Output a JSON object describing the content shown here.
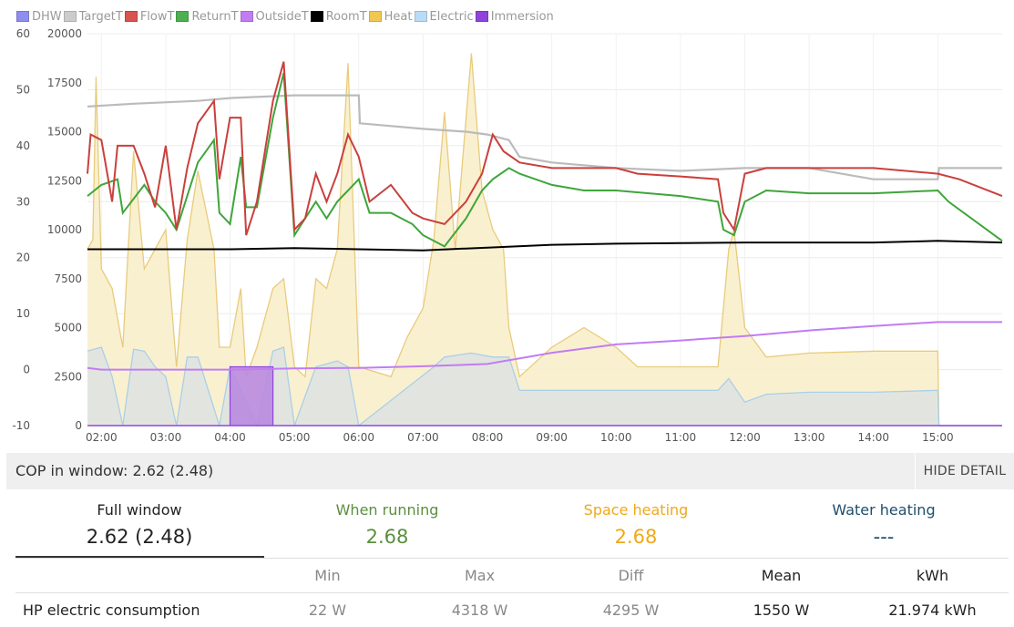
{
  "colors": {
    "dhw": "#8e8ef0",
    "target": "#bbbbbb",
    "flow": "#c9403c",
    "return": "#3fa53a",
    "outside": "#c27cf2",
    "room": "#000000",
    "heat": "#e4c060",
    "heat_fill": "#f8eecb",
    "electric": "#aacfe8",
    "electric_fill": "#dfe3e0",
    "immersion": "#8e44dc",
    "running": "#5a8f3e",
    "space": "#f0a81a",
    "water": "#1f4e6d"
  },
  "legend": [
    {
      "label": "DHW",
      "color": "#8e8ef0"
    },
    {
      "label": "TargetT",
      "color": "#cccccc"
    },
    {
      "label": "FlowT",
      "color": "#d9534f"
    },
    {
      "label": "ReturnT",
      "color": "#4caf50"
    },
    {
      "label": "OutsideT",
      "color": "#c27cf2"
    },
    {
      "label": "RoomT",
      "color": "#000000"
    },
    {
      "label": "Heat",
      "color": "#f0c850"
    },
    {
      "label": "Electric",
      "color": "#b8dcf5"
    },
    {
      "label": "Immersion",
      "color": "#8e44dc"
    }
  ],
  "chart_data": {
    "type": "line",
    "x_label_unit": "time",
    "xlim": [
      "01:47",
      "16:00"
    ],
    "x_ticks": [
      "02:00",
      "03:00",
      "04:00",
      "05:00",
      "06:00",
      "07:00",
      "08:00",
      "09:00",
      "10:00",
      "11:00",
      "12:00",
      "13:00",
      "14:00",
      "15:00"
    ],
    "y_left": {
      "range": [
        -10,
        60
      ],
      "ticks": [
        "60",
        "50",
        "40",
        "30",
        "20",
        "10",
        "0",
        "-10"
      ]
    },
    "y_right": {
      "range": [
        0,
        20000
      ],
      "ticks": [
        "20000",
        "17500",
        "15000",
        "12500",
        "10000",
        "7500",
        "5000",
        "2500",
        "0"
      ]
    },
    "grid": true,
    "legend_position": "top-left",
    "series": [
      {
        "name": "TargetT",
        "axis": "left",
        "points": [
          [
            "01:47",
            47
          ],
          [
            "02:30",
            47.5
          ],
          [
            "03:30",
            48
          ],
          [
            "04:00",
            48.5
          ],
          [
            "05:00",
            49
          ],
          [
            "06:00",
            49
          ],
          [
            "06:01",
            44
          ],
          [
            "07:00",
            43
          ],
          [
            "07:40",
            42.5
          ],
          [
            "08:00",
            42
          ],
          [
            "08:20",
            41
          ],
          [
            "08:30",
            38
          ],
          [
            "09:00",
            37
          ],
          [
            "10:00",
            36
          ],
          [
            "11:00",
            35.5
          ],
          [
            "12:00",
            36
          ],
          [
            "13:00",
            36
          ],
          [
            "14:00",
            34
          ],
          [
            "15:00",
            34
          ],
          [
            "15:01",
            36
          ],
          [
            "16:00",
            36
          ]
        ]
      },
      {
        "name": "FlowT",
        "axis": "left",
        "points": [
          [
            "01:47",
            35
          ],
          [
            "01:50",
            42
          ],
          [
            "02:00",
            41
          ],
          [
            "02:10",
            30
          ],
          [
            "02:15",
            40
          ],
          [
            "02:30",
            40
          ],
          [
            "02:40",
            35
          ],
          [
            "02:50",
            29
          ],
          [
            "03:00",
            40
          ],
          [
            "03:10",
            25
          ],
          [
            "03:20",
            36
          ],
          [
            "03:30",
            44
          ],
          [
            "03:45",
            48
          ],
          [
            "03:50",
            34
          ],
          [
            "04:00",
            45
          ],
          [
            "04:10",
            45
          ],
          [
            "04:15",
            24
          ],
          [
            "04:25",
            30
          ],
          [
            "04:40",
            48
          ],
          [
            "04:50",
            55
          ],
          [
            "05:00",
            25
          ],
          [
            "05:10",
            27
          ],
          [
            "05:20",
            35
          ],
          [
            "05:30",
            30
          ],
          [
            "05:40",
            35
          ],
          [
            "05:50",
            42
          ],
          [
            "06:00",
            38
          ],
          [
            "06:10",
            30
          ],
          [
            "06:30",
            33
          ],
          [
            "06:50",
            28
          ],
          [
            "07:00",
            27
          ],
          [
            "07:20",
            26
          ],
          [
            "07:40",
            30
          ],
          [
            "07:55",
            35
          ],
          [
            "08:05",
            42
          ],
          [
            "08:15",
            39
          ],
          [
            "08:30",
            37
          ],
          [
            "09:00",
            36
          ],
          [
            "10:00",
            36
          ],
          [
            "10:20",
            35
          ],
          [
            "11:00",
            34.5
          ],
          [
            "11:35",
            34
          ],
          [
            "11:40",
            28
          ],
          [
            "11:50",
            25
          ],
          [
            "12:00",
            35
          ],
          [
            "12:20",
            36
          ],
          [
            "13:00",
            36
          ],
          [
            "14:00",
            36
          ],
          [
            "15:00",
            35
          ],
          [
            "15:20",
            34
          ],
          [
            "16:00",
            31
          ]
        ]
      },
      {
        "name": "ReturnT",
        "axis": "left",
        "points": [
          [
            "01:47",
            31
          ],
          [
            "02:00",
            33
          ],
          [
            "02:15",
            34
          ],
          [
            "02:20",
            28
          ],
          [
            "02:40",
            33
          ],
          [
            "02:50",
            30
          ],
          [
            "03:00",
            28
          ],
          [
            "03:10",
            25
          ],
          [
            "03:30",
            37
          ],
          [
            "03:45",
            41
          ],
          [
            "03:50",
            28
          ],
          [
            "04:00",
            26
          ],
          [
            "04:10",
            38
          ],
          [
            "04:15",
            29
          ],
          [
            "04:25",
            29
          ],
          [
            "04:40",
            45
          ],
          [
            "04:50",
            53
          ],
          [
            "05:00",
            24
          ],
          [
            "05:10",
            27
          ],
          [
            "05:20",
            30
          ],
          [
            "05:30",
            27
          ],
          [
            "05:40",
            30
          ],
          [
            "06:00",
            34
          ],
          [
            "06:10",
            28
          ],
          [
            "06:30",
            28
          ],
          [
            "06:50",
            26
          ],
          [
            "07:00",
            24
          ],
          [
            "07:20",
            22
          ],
          [
            "07:40",
            27
          ],
          [
            "07:55",
            32
          ],
          [
            "08:05",
            34
          ],
          [
            "08:20",
            36
          ],
          [
            "08:30",
            35
          ],
          [
            "09:00",
            33
          ],
          [
            "09:30",
            32
          ],
          [
            "10:00",
            32
          ],
          [
            "11:00",
            31
          ],
          [
            "11:35",
            30
          ],
          [
            "11:40",
            25
          ],
          [
            "11:50",
            24
          ],
          [
            "12:00",
            30
          ],
          [
            "12:20",
            32
          ],
          [
            "13:00",
            31.5
          ],
          [
            "14:00",
            31.5
          ],
          [
            "15:00",
            32
          ],
          [
            "15:10",
            30
          ],
          [
            "16:00",
            23
          ]
        ]
      },
      {
        "name": "RoomT",
        "axis": "left",
        "points": [
          [
            "01:47",
            21.5
          ],
          [
            "03:00",
            21.5
          ],
          [
            "04:00",
            21.5
          ],
          [
            "05:00",
            21.7
          ],
          [
            "06:00",
            21.5
          ],
          [
            "07:00",
            21.3
          ],
          [
            "08:00",
            21.8
          ],
          [
            "09:00",
            22.3
          ],
          [
            "10:00",
            22.5
          ],
          [
            "11:00",
            22.6
          ],
          [
            "12:00",
            22.7
          ],
          [
            "13:00",
            22.7
          ],
          [
            "14:00",
            22.7
          ],
          [
            "15:00",
            23
          ],
          [
            "16:00",
            22.7
          ]
        ]
      },
      {
        "name": "OutsideT",
        "axis": "left",
        "points": [
          [
            "01:47",
            0.3
          ],
          [
            "02:00",
            0
          ],
          [
            "03:00",
            0
          ],
          [
            "04:00",
            0
          ],
          [
            "05:00",
            0.2
          ],
          [
            "06:00",
            0.3
          ],
          [
            "07:00",
            0.6
          ],
          [
            "08:00",
            1
          ],
          [
            "09:00",
            3
          ],
          [
            "10:00",
            4.5
          ],
          [
            "11:00",
            5.2
          ],
          [
            "12:00",
            6
          ],
          [
            "13:00",
            7
          ],
          [
            "14:00",
            7.8
          ],
          [
            "15:00",
            8.5
          ],
          [
            "16:00",
            8.5
          ]
        ]
      },
      {
        "name": "Heat",
        "axis": "right",
        "points": [
          [
            "01:47",
            9000
          ],
          [
            "01:52",
            9500
          ],
          [
            "01:55",
            17800
          ],
          [
            "02:00",
            8000
          ],
          [
            "02:10",
            7000
          ],
          [
            "02:20",
            4000
          ],
          [
            "02:30",
            14000
          ],
          [
            "02:40",
            8000
          ],
          [
            "02:50",
            9000
          ],
          [
            "03:00",
            10000
          ],
          [
            "03:10",
            3000
          ],
          [
            "03:20",
            9500
          ],
          [
            "03:30",
            13000
          ],
          [
            "03:45",
            9000
          ],
          [
            "03:50",
            4000
          ],
          [
            "04:00",
            4000
          ],
          [
            "04:10",
            7000
          ],
          [
            "04:15",
            2500
          ],
          [
            "04:25",
            4000
          ],
          [
            "04:40",
            7000
          ],
          [
            "04:50",
            7500
          ],
          [
            "05:00",
            3000
          ],
          [
            "05:10",
            2500
          ],
          [
            "05:20",
            7500
          ],
          [
            "05:30",
            7000
          ],
          [
            "05:40",
            9000
          ],
          [
            "05:50",
            18500
          ],
          [
            "06:00",
            3000
          ],
          [
            "06:30",
            2500
          ],
          [
            "06:45",
            4500
          ],
          [
            "07:00",
            6000
          ],
          [
            "07:10",
            9500
          ],
          [
            "07:20",
            16000
          ],
          [
            "07:30",
            9000
          ],
          [
            "07:45",
            19000
          ],
          [
            "07:55",
            12000
          ],
          [
            "08:05",
            10000
          ],
          [
            "08:15",
            9000
          ],
          [
            "08:20",
            5000
          ],
          [
            "08:30",
            2500
          ],
          [
            "09:00",
            4000
          ],
          [
            "09:30",
            5000
          ],
          [
            "10:00",
            4000
          ],
          [
            "10:20",
            3000
          ],
          [
            "11:00",
            3000
          ],
          [
            "11:35",
            3000
          ],
          [
            "11:45",
            9000
          ],
          [
            "11:50",
            10000
          ],
          [
            "12:00",
            5000
          ],
          [
            "12:20",
            3500
          ],
          [
            "13:00",
            3700
          ],
          [
            "14:00",
            3800
          ],
          [
            "15:00",
            3800
          ],
          [
            "15:01",
            0
          ],
          [
            "16:00",
            0
          ]
        ]
      },
      {
        "name": "Electric",
        "axis": "right",
        "points": [
          [
            "01:47",
            3800
          ],
          [
            "02:00",
            4000
          ],
          [
            "02:10",
            2500
          ],
          [
            "02:20",
            0
          ],
          [
            "02:30",
            3900
          ],
          [
            "02:40",
            3800
          ],
          [
            "02:50",
            3000
          ],
          [
            "03:00",
            2500
          ],
          [
            "03:10",
            0
          ],
          [
            "03:20",
            3500
          ],
          [
            "03:30",
            3500
          ],
          [
            "03:50",
            0
          ],
          [
            "04:00",
            3000
          ],
          [
            "04:25",
            0
          ],
          [
            "04:40",
            3800
          ],
          [
            "04:50",
            4000
          ],
          [
            "05:00",
            0
          ],
          [
            "05:20",
            3000
          ],
          [
            "05:40",
            3300
          ],
          [
            "05:50",
            3000
          ],
          [
            "06:00",
            0
          ],
          [
            "07:10",
            3000
          ],
          [
            "07:20",
            3500
          ],
          [
            "07:45",
            3700
          ],
          [
            "08:05",
            3500
          ],
          [
            "08:20",
            3500
          ],
          [
            "08:30",
            1800
          ],
          [
            "09:00",
            1800
          ],
          [
            "10:00",
            1800
          ],
          [
            "11:00",
            1800
          ],
          [
            "11:35",
            1800
          ],
          [
            "11:45",
            2400
          ],
          [
            "12:00",
            1200
          ],
          [
            "12:20",
            1600
          ],
          [
            "13:00",
            1700
          ],
          [
            "14:00",
            1700
          ],
          [
            "15:00",
            1800
          ],
          [
            "15:01",
            0
          ],
          [
            "16:00",
            0
          ]
        ]
      },
      {
        "name": "Immersion",
        "axis": "right",
        "points": [
          [
            "01:47",
            0
          ],
          [
            "04:00",
            0
          ],
          [
            "04:00",
            3000
          ],
          [
            "04:40",
            3000
          ],
          [
            "04:40",
            0
          ],
          [
            "16:00",
            0
          ]
        ]
      }
    ]
  },
  "cop": {
    "label": "COP in window: 2.62 (2.48)",
    "hide_button": "HIDE DETAIL"
  },
  "stats": {
    "full_window": {
      "label": "Full window",
      "value": "2.62 (2.48)"
    },
    "when_running": {
      "label": "When running",
      "value": "2.68"
    },
    "space_heating": {
      "label": "Space heating",
      "value": "2.68"
    },
    "water_heating": {
      "label": "Water heating",
      "value": "---"
    }
  },
  "table": {
    "headers": [
      "Min",
      "Max",
      "Diff",
      "Mean",
      "kWh"
    ],
    "rows": [
      {
        "label": "HP electric consumption",
        "min": "22 W",
        "max": "4318 W",
        "diff": "4295 W",
        "mean": "1550 W",
        "kwh": "21.974 kWh"
      }
    ]
  }
}
